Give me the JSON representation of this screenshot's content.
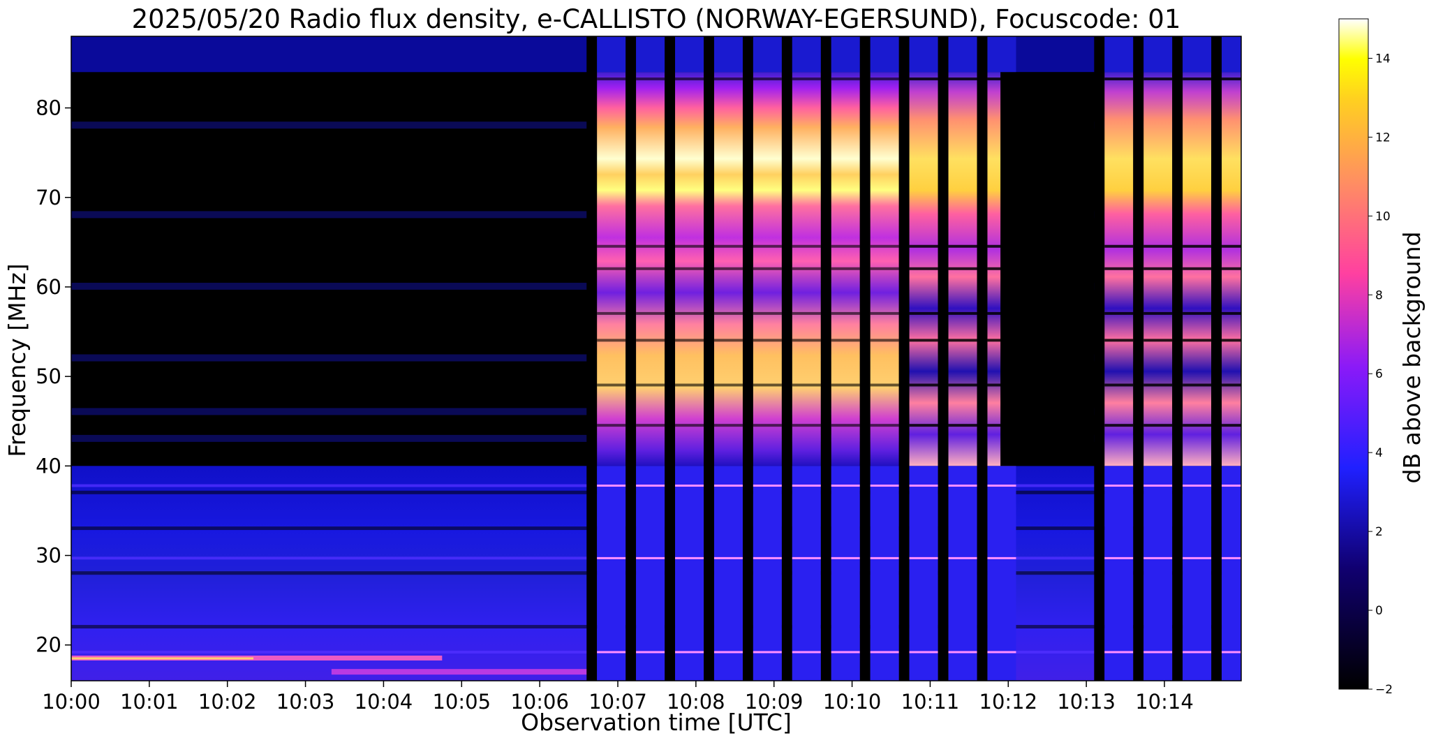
{
  "chart_data": {
    "type": "heatmap",
    "title": "2025/05/20  Radio flux density, e-CALLISTO (NORWAY-EGERSUND), Focuscode: 01",
    "xlabel": "Observation time [UTC]",
    "ylabel": "Frequency [MHz]",
    "x_ticks": [
      "10:00",
      "10:01",
      "10:02",
      "10:03",
      "10:04",
      "10:05",
      "10:06",
      "10:07",
      "10:08",
      "10:09",
      "10:10",
      "10:11",
      "10:12",
      "10:13",
      "10:14"
    ],
    "xlim": [
      "10:00:00",
      "10:14:59"
    ],
    "y_ticks": [
      20,
      30,
      40,
      50,
      60,
      70,
      80
    ],
    "ylim": [
      16,
      88
    ],
    "colorbar": {
      "label": "dB above background",
      "ticks": [
        -2,
        0,
        2,
        4,
        6,
        8,
        10,
        12,
        14
      ],
      "range": [
        -2,
        15
      ],
      "colormap": "gnuplot2"
    },
    "features": {
      "burst_intervals_start": [
        "10:06:44",
        "10:07:14",
        "10:07:44",
        "10:08:14",
        "10:08:44",
        "10:09:14",
        "10:09:44",
        "10:10:14",
        "10:10:44",
        "10:11:14",
        "10:11:44",
        "10:13:14",
        "10:13:44",
        "10:14:14",
        "10:14:44"
      ],
      "burst_band_mhz": [
        40,
        84
      ],
      "peak_band_mhz": [
        72,
        76
      ],
      "secondary_peak_band_mhz": [
        46,
        49
      ],
      "low_band_emission_mhz": [
        16,
        40
      ],
      "rfi_line_mhz": 18.5
    }
  }
}
